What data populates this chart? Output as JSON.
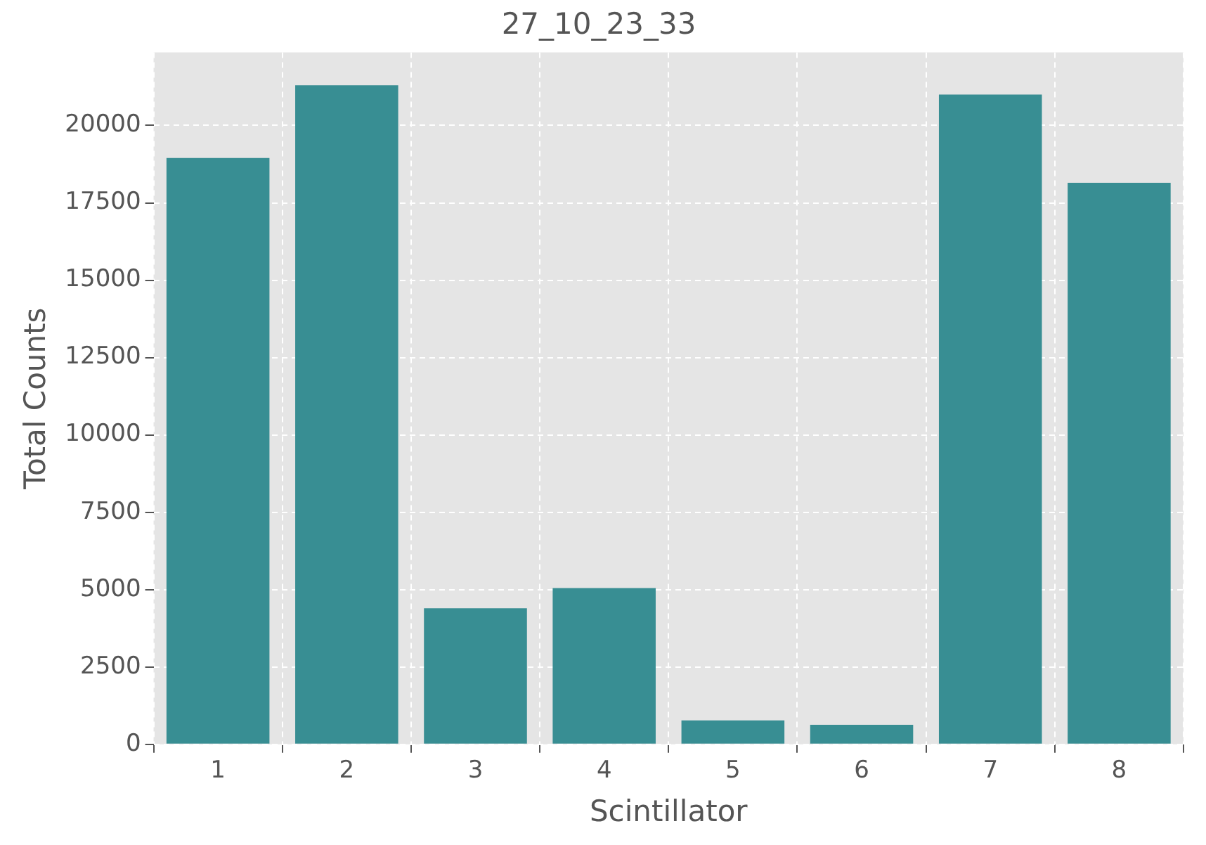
{
  "chart_data": {
    "type": "bar",
    "title": "27_10_23_33",
    "xlabel": "Scintillator",
    "ylabel": "Total Counts",
    "categories": [
      "1",
      "2",
      "3",
      "4",
      "5",
      "6",
      "7",
      "8"
    ],
    "values": [
      18950,
      21300,
      4400,
      5050,
      775,
      630,
      21000,
      18150
    ],
    "color": "#388e93",
    "ylim": [
      0,
      22365
    ],
    "yticks": [
      0,
      2500,
      5000,
      7500,
      10000,
      12500,
      15000,
      17500,
      20000
    ],
    "grid": true
  }
}
